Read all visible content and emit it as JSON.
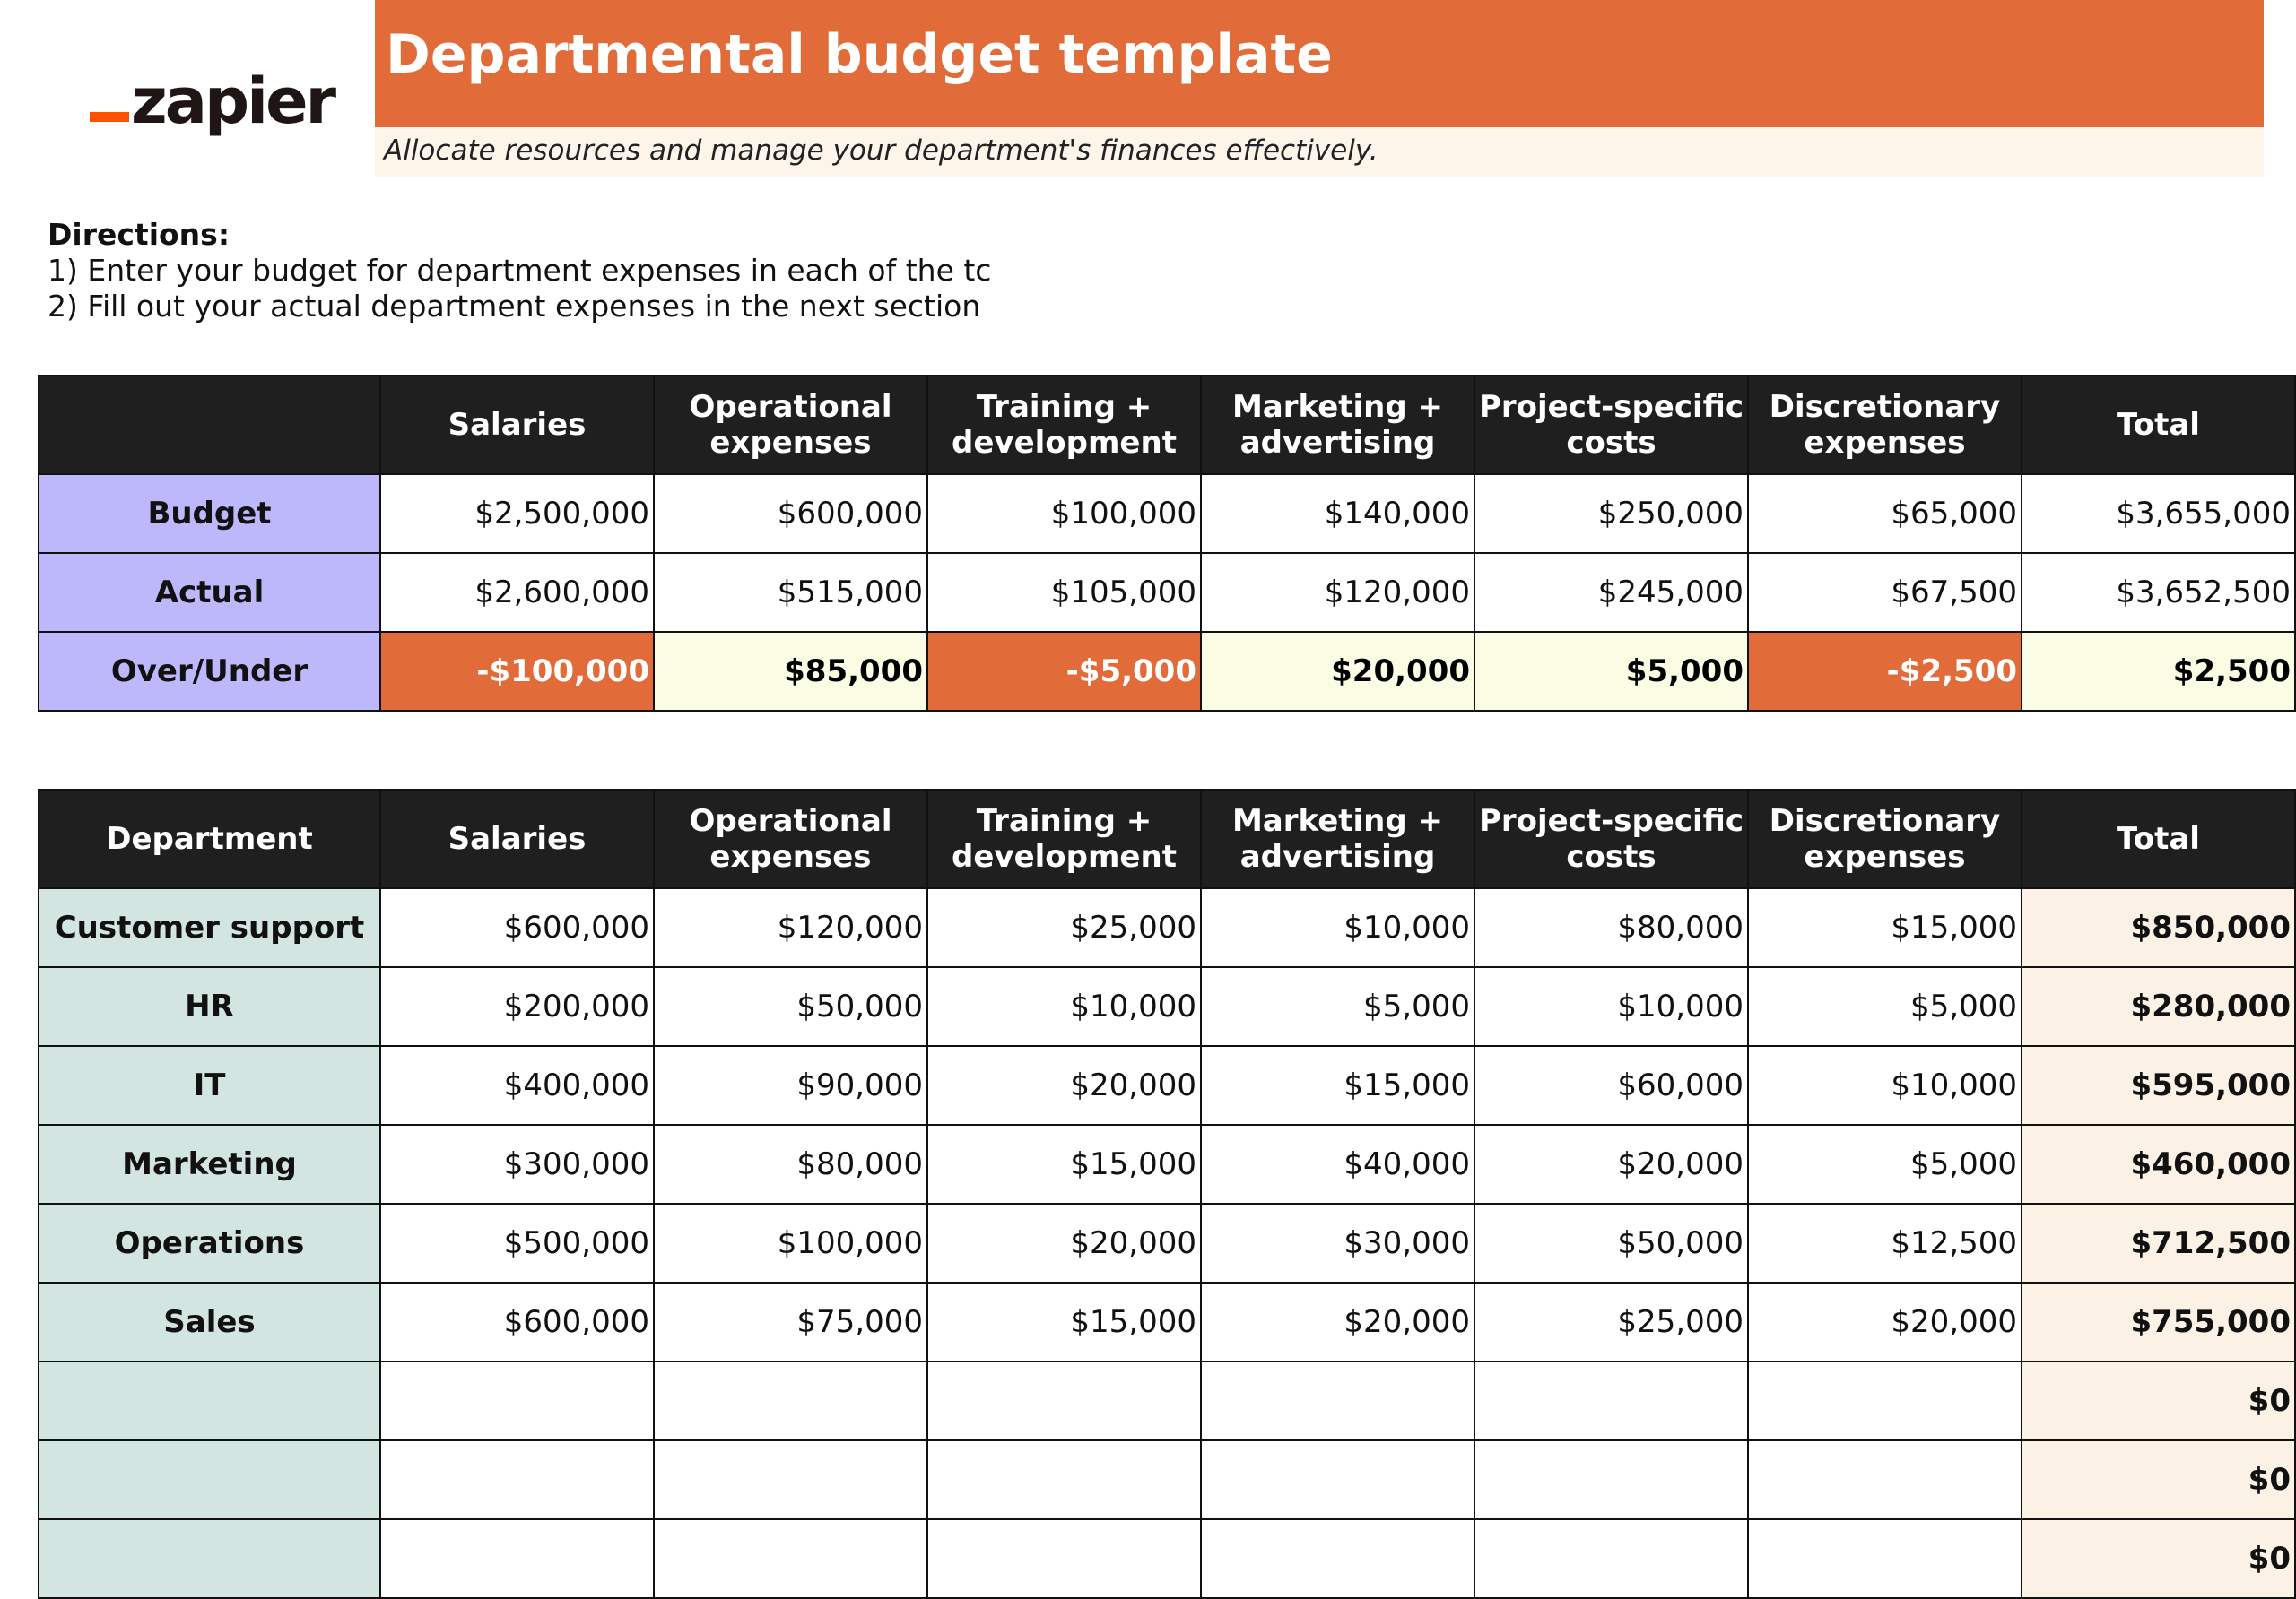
{
  "header": {
    "logo_text": "zapier",
    "title": "Departmental budget template",
    "subtitle": "Allocate resources and manage your department's finances effectively."
  },
  "directions": {
    "title": "Directions:",
    "line1": "1) Enter your budget for department expenses in each of the tc",
    "line2": "2) Fill out your actual department expenses in the next section"
  },
  "summary": {
    "corner": "",
    "columns": [
      "Salaries",
      "Operational expenses",
      "Training + development",
      "Marketing + advertising",
      "Project-specific costs",
      "Discretionary expenses",
      "Total"
    ],
    "rows": [
      {
        "label": "Budget",
        "values": [
          "$2,500,000",
          "$600,000",
          "$100,000",
          "$140,000",
          "$250,000",
          "$65,000",
          "$3,655,000"
        ]
      },
      {
        "label": "Actual",
        "values": [
          "$2,600,000",
          "$515,000",
          "$105,000",
          "$120,000",
          "$245,000",
          "$67,500",
          "$3,652,500"
        ]
      },
      {
        "label": "Over/Under",
        "values": [
          "-$100,000",
          "$85,000",
          "-$5,000",
          "$20,000",
          "$5,000",
          "-$2,500",
          "$2,500"
        ]
      }
    ]
  },
  "departments": {
    "columns": [
      "Department",
      "Salaries",
      "Operational expenses",
      "Training + development",
      "Marketing + advertising",
      "Project-specific costs",
      "Discretionary expenses",
      "Total"
    ],
    "rows": [
      {
        "label": "Customer support",
        "values": [
          "$600,000",
          "$120,000",
          "$25,000",
          "$10,000",
          "$80,000",
          "$15,000",
          "$850,000"
        ]
      },
      {
        "label": "HR",
        "values": [
          "$200,000",
          "$50,000",
          "$10,000",
          "$5,000",
          "$10,000",
          "$5,000",
          "$280,000"
        ]
      },
      {
        "label": "IT",
        "values": [
          "$400,000",
          "$90,000",
          "$20,000",
          "$15,000",
          "$60,000",
          "$10,000",
          "$595,000"
        ]
      },
      {
        "label": "Marketing",
        "values": [
          "$300,000",
          "$80,000",
          "$15,000",
          "$40,000",
          "$20,000",
          "$5,000",
          "$460,000"
        ]
      },
      {
        "label": "Operations",
        "values": [
          "$500,000",
          "$100,000",
          "$20,000",
          "$30,000",
          "$50,000",
          "$12,500",
          "$712,500"
        ]
      },
      {
        "label": "Sales",
        "values": [
          "$600,000",
          "$75,000",
          "$15,000",
          "$20,000",
          "$25,000",
          "$20,000",
          "$755,000"
        ]
      },
      {
        "label": "",
        "values": [
          "",
          "",
          "",
          "",
          "",
          "",
          "$0"
        ]
      },
      {
        "label": "",
        "values": [
          "",
          "",
          "",
          "",
          "",
          "",
          "$0"
        ]
      },
      {
        "label": "",
        "values": [
          "",
          "",
          "",
          "",
          "",
          "",
          "$0"
        ]
      }
    ]
  },
  "colors": {
    "accent_orange": "#e16c3a",
    "brand_orange": "#ff4f00",
    "header_black": "#1f1f1f",
    "label_lavender": "#bdb8fb",
    "label_teal": "#d3e5e1",
    "positive_cell": "#fafde4",
    "total_cell": "#fcf1e5",
    "subtitle_band": "#fdf4ea"
  }
}
